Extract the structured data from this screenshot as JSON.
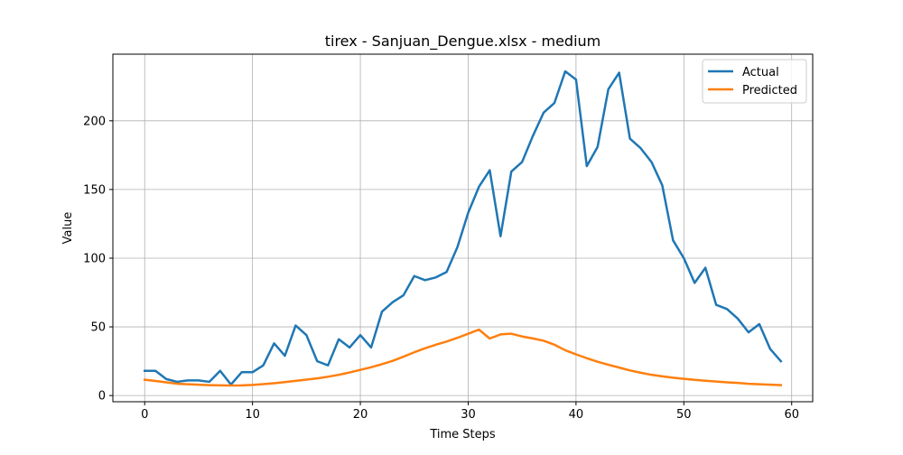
{
  "chart_data": {
    "type": "line",
    "title": "tirex - Sanjuan_Dengue.xlsx - medium",
    "xlabel": "Time Steps",
    "ylabel": "Value",
    "xlim": [
      -2.95,
      61.95
    ],
    "ylim": [
      -4.5,
      248.5
    ],
    "xticks": [
      0,
      10,
      20,
      30,
      40,
      50,
      60
    ],
    "yticks": [
      0,
      50,
      100,
      150,
      200
    ],
    "grid": true,
    "legend_position": "top-right",
    "x": [
      0,
      1,
      2,
      3,
      4,
      5,
      6,
      7,
      8,
      9,
      10,
      11,
      12,
      13,
      14,
      15,
      16,
      17,
      18,
      19,
      20,
      21,
      22,
      23,
      24,
      25,
      26,
      27,
      28,
      29,
      30,
      31,
      32,
      33,
      34,
      35,
      36,
      37,
      38,
      39,
      40,
      41,
      42,
      43,
      44,
      45,
      46,
      47,
      48,
      49,
      50,
      51,
      52,
      53,
      54,
      55,
      56,
      57,
      58,
      59
    ],
    "series": [
      {
        "name": "Actual",
        "color": "#1f77b4",
        "values": [
          18,
          18,
          12,
          10,
          11,
          11,
          10,
          18,
          8,
          17,
          17,
          22,
          38,
          29,
          51,
          44,
          25,
          22,
          41,
          35,
          44,
          35,
          61,
          68,
          73,
          87,
          84,
          86,
          90,
          108,
          133,
          152,
          164,
          116,
          163,
          170,
          189,
          206,
          213,
          236,
          230,
          167,
          181,
          223,
          235,
          187,
          180,
          170,
          153,
          113,
          100,
          82,
          93,
          66,
          63,
          56,
          46,
          52,
          34,
          25
        ]
      },
      {
        "name": "Predicted",
        "color": "#ff7f0e",
        "values": [
          11.5,
          10.6,
          9.6,
          8.6,
          8.2,
          7.9,
          7.6,
          7.4,
          7.3,
          7.4,
          7.7,
          8.3,
          9.0,
          9.8,
          10.7,
          11.6,
          12.5,
          13.7,
          15.1,
          16.8,
          18.7,
          20.6,
          22.8,
          25.3,
          28.3,
          31.5,
          34.4,
          37.0,
          39.3,
          42.0,
          45.0,
          48.0,
          41.5,
          44.5,
          45.0,
          43.0,
          41.6,
          39.9,
          37.0,
          33.0,
          30.0,
          27.2,
          24.6,
          22.4,
          20.4,
          18.3,
          16.6,
          15.1,
          14.0,
          13.0,
          12.2,
          11.4,
          10.8,
          10.2,
          9.6,
          9.2,
          8.6,
          8.2,
          7.9,
          7.6
        ]
      }
    ]
  }
}
